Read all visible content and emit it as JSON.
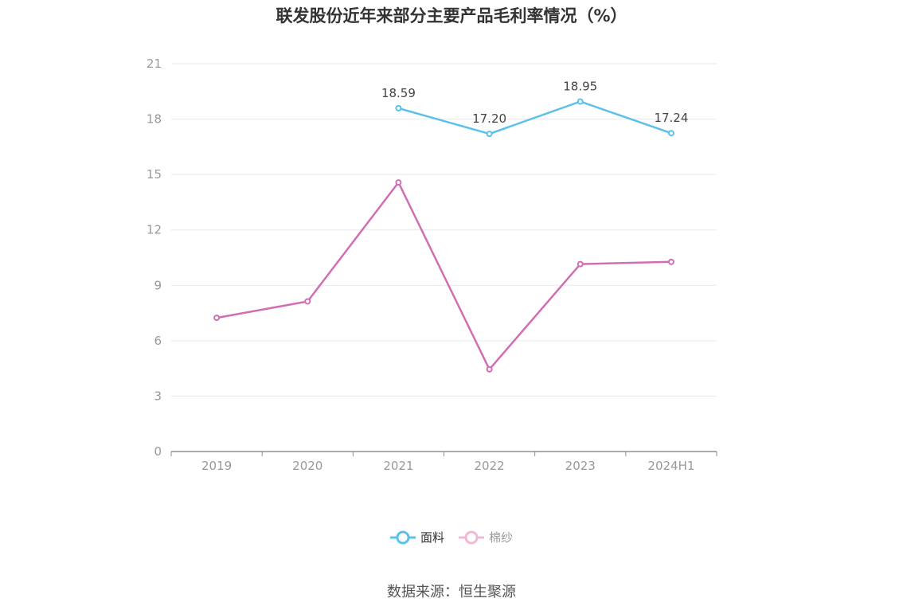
{
  "chart_data": {
    "type": "line",
    "title": "联发股份近年来部分主要产品毛利率情况（%）",
    "categories": [
      "2019",
      "2020",
      "2021",
      "2022",
      "2023",
      "2024H1"
    ],
    "ylim": [
      0,
      21
    ],
    "yticks": [
      0,
      3,
      6,
      9,
      12,
      15,
      18,
      21
    ],
    "grid": true,
    "legend_position": "bottom",
    "series": [
      {
        "name": "面料",
        "color": "#5bc0eb",
        "values": [
          null,
          null,
          18.59,
          17.2,
          18.95,
          17.24
        ],
        "show_labels": true
      },
      {
        "name": "棉纱",
        "color": "#d16eb3",
        "values": [
          7.24,
          8.13,
          14.57,
          4.45,
          10.15,
          10.27
        ],
        "show_labels": false
      }
    ]
  },
  "legend": {
    "items": [
      {
        "label": "面料",
        "color": "#5bc0eb"
      },
      {
        "label": "棉纱",
        "color": "#f0b8d8"
      }
    ]
  },
  "source": "数据来源：恒生聚源"
}
